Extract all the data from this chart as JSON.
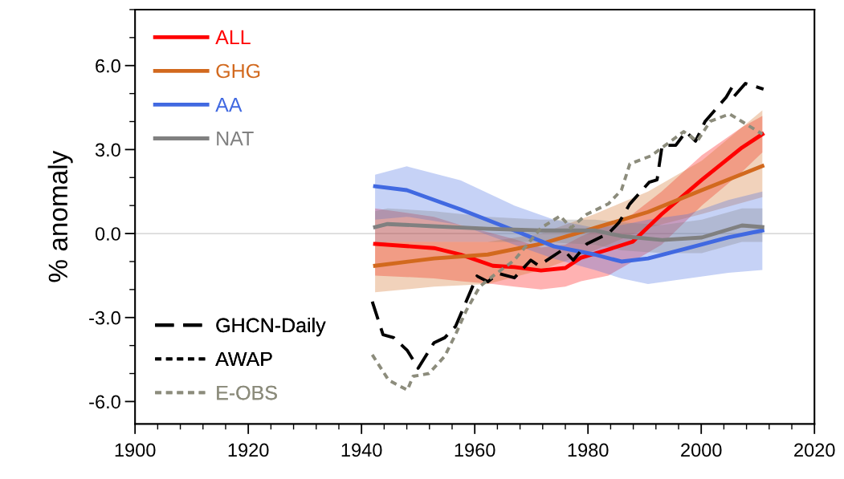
{
  "chart_data": {
    "type": "line",
    "ylabel": "% anomaly",
    "xlim": [
      1900,
      2020
    ],
    "xticks": [
      1900,
      {
        "value": 1904,
        "label": null
      },
      {
        "value": 1908,
        "label": null
      },
      {
        "value": 1912,
        "label": null
      },
      {
        "value": 1916,
        "label": null
      },
      1920,
      {
        "value": 1924,
        "label": null
      },
      {
        "value": 1928,
        "label": null
      },
      {
        "value": 1932,
        "label": null
      },
      {
        "value": 1936,
        "label": null
      },
      1940,
      {
        "value": 1944,
        "label": null
      },
      {
        "value": 1948,
        "label": null
      },
      {
        "value": 1952,
        "label": null
      },
      {
        "value": 1956,
        "label": null
      },
      1960,
      {
        "value": 1964,
        "label": null
      },
      {
        "value": 1968,
        "label": null
      },
      {
        "value": 1972,
        "label": null
      },
      {
        "value": 1976,
        "label": null
      },
      1980,
      {
        "value": 1984,
        "label": null
      },
      {
        "value": 1988,
        "label": null
      },
      {
        "value": 1992,
        "label": null
      },
      {
        "value": 1996,
        "label": null
      },
      2000,
      {
        "value": 2004,
        "label": null
      },
      {
        "value": 2008,
        "label": null
      },
      {
        "value": 2012,
        "label": null
      },
      {
        "value": 2016,
        "label": null
      },
      2020
    ],
    "ylim": [
      -6.8,
      8
    ],
    "yticks": [
      {
        "value": -6,
        "label": "-6.0"
      },
      {
        "value": -5,
        "label": null
      },
      {
        "value": -4,
        "label": null
      },
      {
        "value": -3,
        "label": "-3.0"
      },
      {
        "value": -2,
        "label": null
      },
      {
        "value": -1,
        "label": null
      },
      {
        "value": 0,
        "label": "0.0"
      },
      {
        "value": 1,
        "label": null
      },
      {
        "value": 2,
        "label": null
      },
      {
        "value": 3,
        "label": "3.0"
      },
      {
        "value": 4,
        "label": null
      },
      {
        "value": 5,
        "label": null
      },
      {
        "value": 6,
        "label": "6.0"
      },
      {
        "value": 7,
        "label": null
      },
      {
        "value": 8,
        "label": null
      }
    ],
    "ref_lines": [
      {
        "axis": "y",
        "value": 0,
        "label": null,
        "color": "#cccccc"
      }
    ],
    "grid": false,
    "legend": "left",
    "marker": "none",
    "series": [
      {
        "name": "ALL",
        "color": "#ff0000",
        "line_style": "solid",
        "x": [
          1942.4,
          1952.8,
          1957.5,
          1963.2,
          1967,
          1971.7,
          1976,
          1978.8,
          1983.6,
          1987.9,
          1993,
          2000.1,
          2007.2,
          2010.8
        ],
        "values": [
          -0.37,
          -0.52,
          -0.75,
          -1.15,
          -1.2,
          -1.32,
          -1.23,
          -0.86,
          -0.57,
          -0.29,
          0.69,
          1.92,
          3.07,
          3.55
        ],
        "lower": [
          -1.5,
          -1.6,
          -1.7,
          -1.8,
          -1.9,
          -2.0,
          -1.9,
          -1.7,
          -1.5,
          -1.0,
          -0.4,
          1.0,
          2.2,
          2.9
        ],
        "upper": [
          0.9,
          0.6,
          0.3,
          0.0,
          -0.2,
          -0.5,
          -0.4,
          -0.1,
          0.3,
          0.7,
          1.5,
          2.8,
          3.8,
          4.2
        ]
      },
      {
        "name": "GHG",
        "color": "#d2691e",
        "line_style": "solid",
        "x": [
          1942.4,
          1952.8,
          1962.3,
          1971.7,
          1981.2,
          1990.6,
          2000.1,
          2010.8
        ],
        "values": [
          -1.15,
          -0.89,
          -0.75,
          -0.37,
          0.2,
          0.77,
          1.55,
          2.41
        ],
        "lower": [
          -2.1,
          -1.9,
          -1.8,
          -1.3,
          -0.6,
          0.2,
          0.7,
          1.3
        ],
        "upper": [
          -0.3,
          -0.3,
          -0.3,
          0.0,
          0.7,
          1.5,
          2.6,
          4.4
        ]
      },
      {
        "name": "AA",
        "color": "#4169e1",
        "line_style": "solid",
        "x": [
          1942.4,
          1948,
          1957.5,
          1967,
          1974,
          1981.2,
          1985.9,
          1990.6,
          1997.7,
          2004.8,
          2010.8
        ],
        "values": [
          1.69,
          1.55,
          0.86,
          0.11,
          -0.46,
          -0.75,
          -1.0,
          -0.89,
          -0.52,
          -0.14,
          0.11
        ],
        "lower": [
          0.5,
          0.6,
          0.3,
          -0.4,
          -0.9,
          -1.3,
          -1.6,
          -1.8,
          -1.6,
          -1.4,
          -1.3
        ],
        "upper": [
          2.1,
          2.4,
          1.9,
          1.0,
          0.5,
          0.2,
          0.3,
          0.5,
          0.7,
          1.2,
          1.5
        ]
      },
      {
        "name": "NAT",
        "color": "#808080",
        "line_style": "solid",
        "x": [
          1942.4,
          1944.6,
          1952.8,
          1962.3,
          1971.7,
          1981.2,
          1985.9,
          1993.1,
          2000.1,
          2007.2,
          2010.8
        ],
        "values": [
          0.23,
          0.34,
          0.26,
          0.17,
          0.11,
          0.11,
          -0.09,
          -0.23,
          -0.14,
          0.29,
          0.23
        ],
        "lower": [
          -0.4,
          -0.3,
          -0.3,
          -0.3,
          -0.3,
          -0.4,
          -0.6,
          -0.7,
          -0.7,
          -0.3,
          -0.3
        ],
        "upper": [
          0.8,
          0.9,
          0.8,
          0.6,
          0.5,
          0.5,
          0.4,
          0.3,
          0.5,
          0.9,
          0.9
        ]
      },
      {
        "name": "GHCN-Daily",
        "color": "#000000",
        "line_style": "dashed",
        "x": [
          1941.9,
          1943.8,
          1945.7,
          1948.1,
          1950,
          1952.8,
          1954.7,
          1956.6,
          1958,
          1960.4,
          1962.3,
          1964.2,
          1967,
          1969.9,
          1971.3,
          1975.6,
          1977.4,
          1979.8,
          1983.6,
          1985.5,
          1987.4,
          1990.8,
          1992.2,
          1993.1,
          1995.5,
          1997.3,
          1999,
          2000.7,
          2004.4,
          2005.4,
          2005.8,
          2007.8,
          2011
        ],
        "values": [
          -2.43,
          -3.61,
          -3.72,
          -4.18,
          -4.81,
          -3.9,
          -3.72,
          -3.32,
          -2.66,
          -1.52,
          -1.72,
          -1.43,
          -1.58,
          -0.95,
          -1.15,
          -0.57,
          -0.95,
          -0.37,
          0.0,
          0.4,
          1.06,
          1.83,
          1.92,
          3.15,
          3.15,
          3.64,
          3.3,
          4.01,
          4.87,
          5.21,
          4.9,
          5.36,
          5.16
        ]
      },
      {
        "name": "AWAP",
        "color": "#000000",
        "line_style": "dotted"
      },
      {
        "name": "E-OBS",
        "color": "#8c8c7c",
        "line_style": "dotted",
        "x": [
          1941.9,
          1944.8,
          1948.1,
          1949.1,
          1951.9,
          1954.7,
          1956.6,
          1958.5,
          1960.9,
          1963.2,
          1967,
          1971.7,
          1975.1,
          1977,
          1979.8,
          1983.6,
          1985.9,
          1987.4,
          1991.2,
          1993.1,
          1996.9,
          1999.3,
          2001.6,
          2005,
          2007.2,
          2010.8
        ],
        "values": [
          -4.33,
          -5.24,
          -5.59,
          -5.1,
          -5.0,
          -4.38,
          -3.61,
          -2.75,
          -1.89,
          -1.52,
          -0.95,
          0.2,
          0.63,
          0.2,
          0.69,
          1.06,
          1.55,
          2.49,
          2.78,
          3.07,
          3.64,
          3.3,
          4.01,
          4.27,
          4.0,
          3.55
        ]
      }
    ]
  }
}
